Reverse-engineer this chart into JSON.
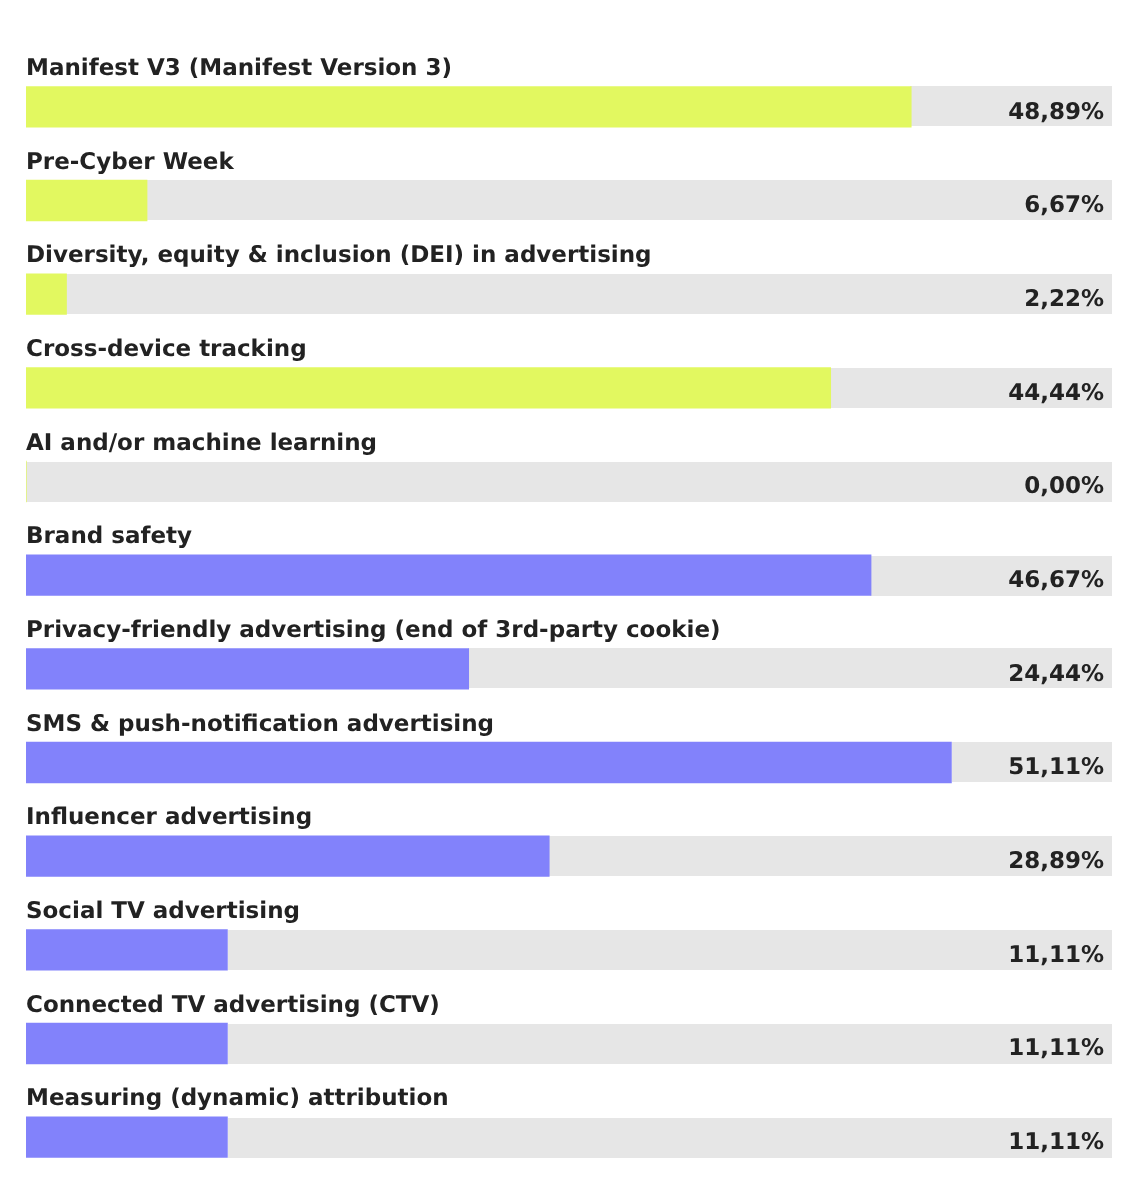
{
  "chart_data": {
    "type": "bar",
    "orientation": "horizontal",
    "categories": [
      "Manifest V3 (Manifest Version 3)",
      "Pre-Cyber Week",
      "Diversity, equity & inclusion (DEI) in advertising",
      "Cross-device tracking",
      "AI and/or machine learning",
      "Brand safety",
      "Privacy-friendly advertising (end of 3rd-party cookie)",
      "SMS & push-notification advertising",
      "Influencer advertising",
      "Social TV advertising",
      "Connected TV advertising (CTV)",
      "Measuring (dynamic) attribution"
    ],
    "values": [
      48.89,
      6.67,
      2.22,
      44.44,
      0,
      46.67,
      24.44,
      51.11,
      28.89,
      11.11,
      11.11,
      11.11
    ],
    "colors": [
      "#e2f860",
      "#e2f860",
      "#e2f860",
      "#e2f860",
      "#e2f860",
      "#8282fb",
      "#8282fb",
      "#8282fb",
      "#8282fb",
      "#8282fb",
      "#8282fb",
      "#8282fb"
    ],
    "value_labels": [
      "48,89%",
      "6,67%",
      "2,22%",
      "44,44%",
      "0,00%",
      "46,67%",
      "24,44%",
      "51,11%",
      "28,89%",
      "11,11%",
      "11,11%",
      "11,11%"
    ],
    "legend": false
  }
}
